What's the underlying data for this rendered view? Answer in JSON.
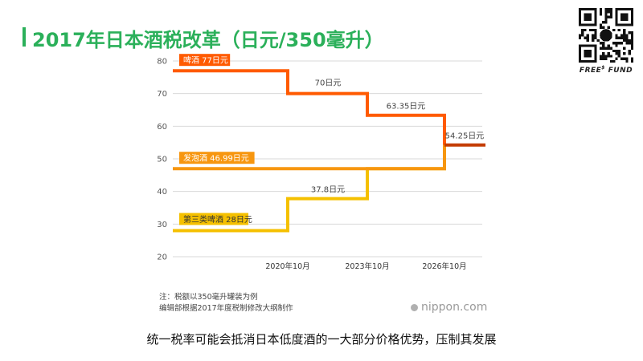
{
  "header": {
    "title": "2017年日本酒税改革（日元/350毫升）"
  },
  "brand": {
    "name_pre": "FREE",
    "name_sup": "$",
    "name_post": " FUND"
  },
  "chart_data": {
    "type": "line",
    "step": true,
    "ylim": [
      20,
      80
    ],
    "yticks": [
      20,
      30,
      40,
      50,
      60,
      70,
      80
    ],
    "x_tick_labels": [
      "2020年10月",
      "2023年10月",
      "2026年10月"
    ],
    "grid": true,
    "series": [
      {
        "name": "啤酒",
        "color": "#ff5a00",
        "points": [
          {
            "x": "2017",
            "y": 77
          },
          {
            "x": "2020年10月",
            "y": 70
          },
          {
            "x": "2023年10月",
            "y": 63.35
          },
          {
            "x": "2026年10月",
            "y": 54.25
          }
        ]
      },
      {
        "name": "发泡酒",
        "color": "#f7960f",
        "points": [
          {
            "x": "2017",
            "y": 46.99
          },
          {
            "x": "2026年10月",
            "y": 54.25
          }
        ]
      },
      {
        "name": "第三类啤酒",
        "color": "#f5c000",
        "points": [
          {
            "x": "2017",
            "y": 28
          },
          {
            "x": "2020年10月",
            "y": 37.8
          },
          {
            "x": "2023年10月",
            "y": 46.99
          },
          {
            "x": "2026年10月",
            "y": 54.25
          }
        ]
      }
    ],
    "final": {
      "y": 54.25,
      "color": "#c43c00"
    },
    "labels": {
      "beer_start": "啤酒 77日元",
      "happoshu_start": "发泡酒 46.99日元",
      "third_start": "第三类啤酒 28日元",
      "beer_70": "70日元",
      "beer_6335": "63.35日元",
      "third_378": "37.8日元",
      "final": "54.25日元"
    }
  },
  "notes": {
    "line1": "注：税额以350毫升罐装为例",
    "line2": "编辑部根据2017年度税制修改大纲制作"
  },
  "source": {
    "site": "nippon.com"
  },
  "caption": {
    "text": "统一税率可能会抵消日本低度酒的一大部分价格优势，压制其发展"
  }
}
